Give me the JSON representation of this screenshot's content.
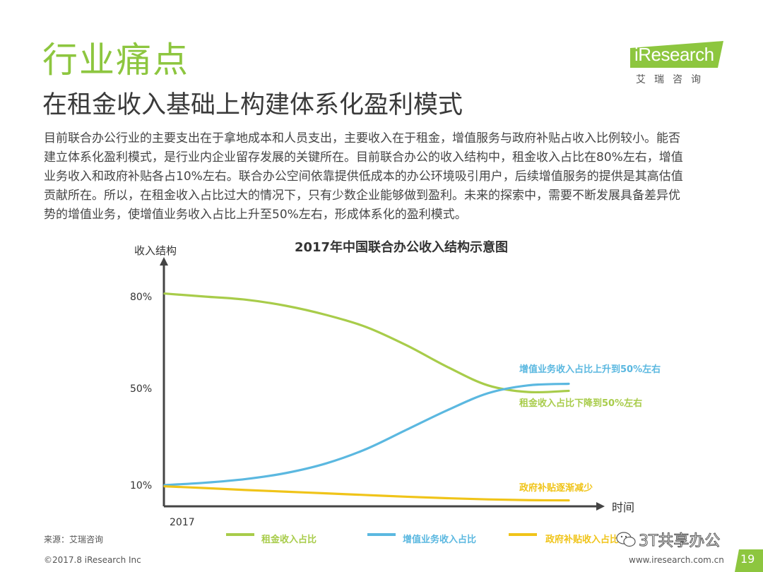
{
  "header": {
    "section_title": "行业痛点",
    "subtitle": "在租金收入基础上构建体系化盈利模式"
  },
  "logo": {
    "brand": "iResearch",
    "brand_cn": "艾瑞咨询",
    "colors": {
      "banner": "#8dc63f",
      "text": "#ffffff"
    }
  },
  "body_lines": [
    "目前联合办公行业的主要支出在于拿地成本和人员支出，主要收入在于租金，增值服务与政府补贴占收入比例较小。能否",
    "建立体系化盈利模式，是行业内企业留存发展的关键所在。目前联合办公的收入结构中，租金收入占比在80%左右，增值",
    "业务收入和政府补贴各占10%左右。联合办公空间依靠提供低成本的办公环境吸引用户，后续增值服务的提供是其高估值",
    "贡献所在。所以，在租金收入占比过大的情况下，只有少数企业能够做到盈利。未来的探索中，需要不断发展具备差异优",
    "势的增值业务，使增值业务收入占比上升至50%左右，形成体系化的盈利模式。"
  ],
  "chart_data": {
    "type": "line",
    "title": "2017年中国联合办公收入结构示意图",
    "ylabel": "收入结构",
    "xlabel": "时间",
    "y_ticks": [
      "80%",
      "50%",
      "10%"
    ],
    "x_tick": "2017",
    "ylim": [
      0,
      90
    ],
    "series": [
      {
        "name": "租金收入占比",
        "color": "#a8cc4a",
        "x": [
          0,
          0.1,
          0.2,
          0.3,
          0.4,
          0.5,
          0.6,
          0.7,
          0.8,
          0.9,
          1.0
        ],
        "values": [
          81,
          80,
          79,
          77,
          74,
          70,
          64,
          57,
          51,
          48.5,
          49
        ],
        "annotation": "租金收入占比下降到50%左右"
      },
      {
        "name": "增值业务收入占比",
        "color": "#5bb8e0",
        "x": [
          0,
          0.1,
          0.2,
          0.3,
          0.4,
          0.5,
          0.6,
          0.7,
          0.8,
          0.9,
          1.0
        ],
        "values": [
          10,
          11,
          12.5,
          15,
          19,
          25,
          33,
          41,
          48,
          51,
          51.5
        ],
        "annotation": "增值业务收入占比上升到50%左右"
      },
      {
        "name": "政府补贴收入占比",
        "color": "#f0c419",
        "x": [
          0,
          0.1,
          0.2,
          0.3,
          0.4,
          0.5,
          0.6,
          0.7,
          0.8,
          0.9,
          1.0
        ],
        "values": [
          9.5,
          8.8,
          8,
          7.3,
          6.6,
          5.9,
          5.2,
          4.6,
          4.1,
          3.8,
          3.7
        ],
        "annotation": "政府补贴逐渐减少"
      }
    ],
    "legend_placement": "bottom"
  },
  "footer": {
    "source": "来源：艾瑞咨询",
    "copyright": "©2017.8 iResearch Inc",
    "website": "www.iresearch.com.cn",
    "page": "19",
    "watermark": "3T共享办公"
  }
}
